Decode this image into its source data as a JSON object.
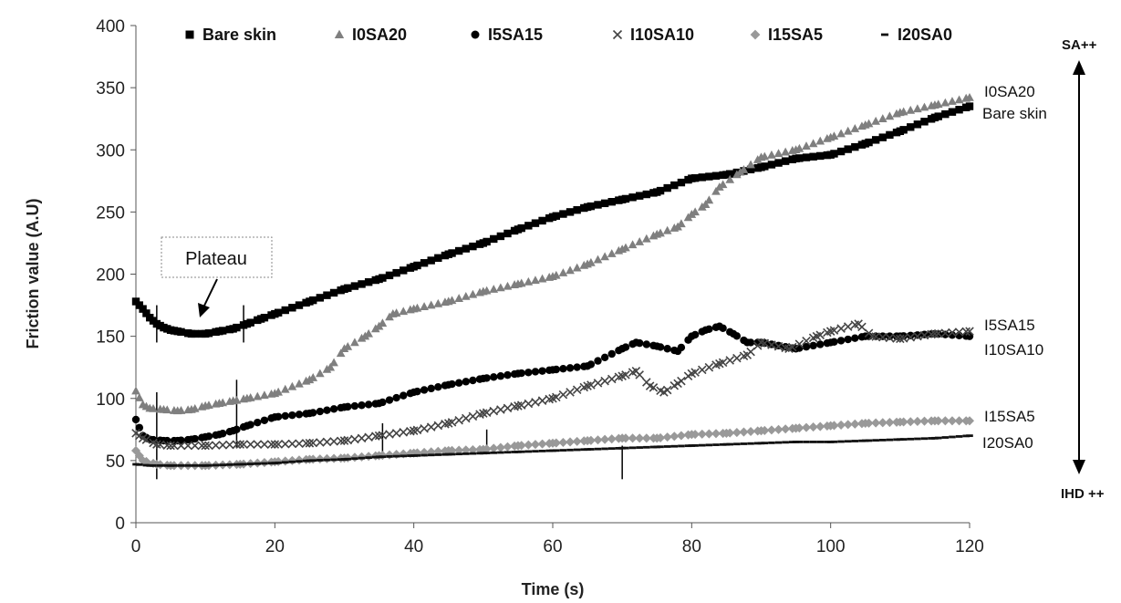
{
  "chart_data": {
    "type": "scatter",
    "title": "",
    "xlabel": "Time (s)",
    "ylabel": "Friction value (A.U)",
    "xlim": [
      0,
      120
    ],
    "ylim": [
      0,
      400
    ],
    "xticks": [
      0,
      20,
      40,
      60,
      80,
      100,
      120
    ],
    "yticks": [
      0,
      50,
      100,
      150,
      200,
      250,
      300,
      350,
      400
    ],
    "grid": false,
    "legend_position": "top",
    "series": [
      {
        "name": "Bare skin",
        "marker": "square",
        "color": "#000000",
        "points": [
          [
            0,
            178
          ],
          [
            1,
            172
          ],
          [
            2,
            165
          ],
          [
            3,
            160
          ],
          [
            4,
            157
          ],
          [
            5,
            155
          ],
          [
            6,
            154
          ],
          [
            8,
            152
          ],
          [
            10,
            152
          ],
          [
            12,
            154
          ],
          [
            14,
            156
          ],
          [
            16,
            160
          ],
          [
            18,
            164
          ],
          [
            20,
            168
          ],
          [
            25,
            178
          ],
          [
            30,
            188
          ],
          [
            35,
            196
          ],
          [
            40,
            206
          ],
          [
            45,
            216
          ],
          [
            50,
            225
          ],
          [
            55,
            236
          ],
          [
            60,
            246
          ],
          [
            65,
            254
          ],
          [
            70,
            260
          ],
          [
            75,
            266
          ],
          [
            80,
            277
          ],
          [
            85,
            280
          ],
          [
            90,
            286
          ],
          [
            95,
            293
          ],
          [
            100,
            296
          ],
          [
            105,
            305
          ],
          [
            110,
            315
          ],
          [
            115,
            326
          ],
          [
            120,
            335
          ]
        ]
      },
      {
        "name": "I0SA20",
        "marker": "triangle",
        "color": "#7f7f7f",
        "points": [
          [
            0,
            106
          ],
          [
            1,
            95
          ],
          [
            2,
            92
          ],
          [
            4,
            91
          ],
          [
            6,
            90
          ],
          [
            8,
            91
          ],
          [
            10,
            94
          ],
          [
            12,
            96
          ],
          [
            14,
            98
          ],
          [
            16,
            100
          ],
          [
            20,
            104
          ],
          [
            25,
            115
          ],
          [
            28,
            125
          ],
          [
            30,
            140
          ],
          [
            33,
            150
          ],
          [
            35,
            158
          ],
          [
            37,
            168
          ],
          [
            40,
            172
          ],
          [
            45,
            178
          ],
          [
            50,
            186
          ],
          [
            55,
            192
          ],
          [
            60,
            198
          ],
          [
            65,
            208
          ],
          [
            70,
            220
          ],
          [
            75,
            232
          ],
          [
            78,
            238
          ],
          [
            80,
            248
          ],
          [
            82,
            256
          ],
          [
            84,
            270
          ],
          [
            87,
            282
          ],
          [
            90,
            294
          ],
          [
            95,
            300
          ],
          [
            100,
            310
          ],
          [
            105,
            320
          ],
          [
            110,
            330
          ],
          [
            115,
            336
          ],
          [
            120,
            342
          ]
        ]
      },
      {
        "name": "I5SA15",
        "marker": "circle",
        "color": "#000000",
        "points": [
          [
            0,
            83
          ],
          [
            1,
            70
          ],
          [
            2,
            67
          ],
          [
            4,
            66
          ],
          [
            6,
            66
          ],
          [
            8,
            67
          ],
          [
            10,
            69
          ],
          [
            12,
            71
          ],
          [
            14,
            74
          ],
          [
            16,
            78
          ],
          [
            20,
            85
          ],
          [
            25,
            88
          ],
          [
            30,
            93
          ],
          [
            35,
            96
          ],
          [
            40,
            105
          ],
          [
            45,
            111
          ],
          [
            50,
            116
          ],
          [
            55,
            120
          ],
          [
            60,
            123
          ],
          [
            65,
            126
          ],
          [
            70,
            140
          ],
          [
            72,
            145
          ],
          [
            75,
            142
          ],
          [
            78,
            138
          ],
          [
            80,
            150
          ],
          [
            82,
            155
          ],
          [
            84,
            158
          ],
          [
            86,
            152
          ],
          [
            88,
            145
          ],
          [
            90,
            145
          ],
          [
            95,
            140
          ],
          [
            100,
            145
          ],
          [
            105,
            150
          ],
          [
            110,
            150
          ],
          [
            115,
            152
          ],
          [
            120,
            150
          ]
        ]
      },
      {
        "name": "I10SA10",
        "marker": "x",
        "color": "#444444",
        "points": [
          [
            0,
            72
          ],
          [
            1,
            68
          ],
          [
            3,
            63
          ],
          [
            5,
            62
          ],
          [
            10,
            62
          ],
          [
            15,
            63
          ],
          [
            20,
            63
          ],
          [
            25,
            64
          ],
          [
            30,
            66
          ],
          [
            35,
            70
          ],
          [
            40,
            74
          ],
          [
            45,
            80
          ],
          [
            50,
            88
          ],
          [
            55,
            94
          ],
          [
            60,
            100
          ],
          [
            65,
            110
          ],
          [
            70,
            118
          ],
          [
            72,
            122
          ],
          [
            74,
            110
          ],
          [
            76,
            105
          ],
          [
            78,
            112
          ],
          [
            80,
            120
          ],
          [
            84,
            128
          ],
          [
            88,
            135
          ],
          [
            90,
            145
          ],
          [
            94,
            140
          ],
          [
            98,
            150
          ],
          [
            100,
            154
          ],
          [
            104,
            160
          ],
          [
            106,
            150
          ],
          [
            110,
            148
          ],
          [
            115,
            152
          ],
          [
            120,
            154
          ]
        ]
      },
      {
        "name": "I15SA5",
        "marker": "diamond",
        "color": "#999999",
        "points": [
          [
            0,
            58
          ],
          [
            1,
            50
          ],
          [
            3,
            47
          ],
          [
            5,
            46
          ],
          [
            10,
            46
          ],
          [
            15,
            47
          ],
          [
            20,
            49
          ],
          [
            25,
            51
          ],
          [
            30,
            52
          ],
          [
            35,
            54
          ],
          [
            40,
            56
          ],
          [
            45,
            58
          ],
          [
            50,
            59
          ],
          [
            55,
            62
          ],
          [
            60,
            64
          ],
          [
            65,
            66
          ],
          [
            70,
            68
          ],
          [
            75,
            68
          ],
          [
            80,
            71
          ],
          [
            85,
            72
          ],
          [
            90,
            74
          ],
          [
            95,
            76
          ],
          [
            100,
            78
          ],
          [
            105,
            80
          ],
          [
            110,
            81
          ],
          [
            115,
            82
          ],
          [
            120,
            82
          ]
        ]
      },
      {
        "name": "I20SA0",
        "marker": "dash",
        "color": "#111111",
        "points": [
          [
            0,
            47
          ],
          [
            2,
            46
          ],
          [
            5,
            46
          ],
          [
            10,
            46
          ],
          [
            15,
            47
          ],
          [
            20,
            48
          ],
          [
            25,
            50
          ],
          [
            30,
            51
          ],
          [
            35,
            53
          ],
          [
            40,
            54
          ],
          [
            45,
            55
          ],
          [
            50,
            56
          ],
          [
            55,
            57
          ],
          [
            60,
            58
          ],
          [
            65,
            59
          ],
          [
            70,
            60
          ],
          [
            75,
            61
          ],
          [
            80,
            62
          ],
          [
            85,
            63
          ],
          [
            90,
            64
          ],
          [
            95,
            65
          ],
          [
            100,
            65
          ],
          [
            105,
            66
          ],
          [
            110,
            67
          ],
          [
            115,
            68
          ],
          [
            120,
            70
          ]
        ]
      }
    ],
    "series_end_labels": [
      "I0SA20",
      "Bare skin",
      "I5SA15",
      "I10SA10",
      "I15SA5",
      "I20SA0"
    ],
    "annotations": {
      "plateau_label": "Plateau",
      "arrow_top_label": "SA++",
      "arrow_bottom_label": "IHD ++",
      "vertical_marks": [
        {
          "x": 3,
          "y_min": 145,
          "y_max": 175
        },
        {
          "x": 15.5,
          "y_min": 145,
          "y_max": 175
        },
        {
          "x": 3,
          "y_min": 35,
          "y_max": 105
        },
        {
          "x": 14.5,
          "y_min": 60,
          "y_max": 115
        },
        {
          "x": 35.5,
          "y_min": 55,
          "y_max": 80
        },
        {
          "x": 50.5,
          "y_min": 55,
          "y_max": 75
        },
        {
          "x": 70,
          "y_min": 35,
          "y_max": 62
        }
      ]
    }
  }
}
